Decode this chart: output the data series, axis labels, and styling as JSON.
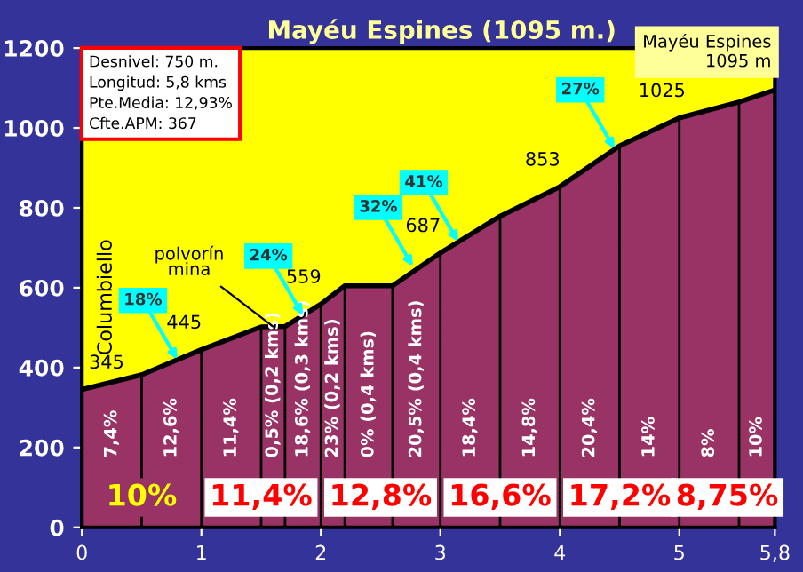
{
  "chart_data": {
    "type": "area",
    "title": "Mayéu Espines (1095 m.)",
    "x": [
      0,
      0.5,
      1,
      1.5,
      1.7,
      2,
      2.2,
      2.6,
      3,
      3.5,
      4,
      4.5,
      5,
      5.5,
      5.8
    ],
    "series": [
      {
        "color": "#993366",
        "values": [
          345,
          382,
          445,
          502,
          503,
          559,
          605,
          605,
          687,
          779,
          853,
          955,
          1025,
          1065,
          1095
        ]
      }
    ],
    "xlim": [
      0,
      5.8
    ],
    "ylim": [
      0,
      1200
    ],
    "xticks": [
      0,
      1,
      2,
      3,
      4,
      5,
      {
        "value": 5.8,
        "label": "5,8"
      }
    ],
    "yticks": [
      0,
      200,
      400,
      600,
      800,
      1000,
      1200
    ],
    "annotations": [
      "Desnivel: 750 m.\nLongitud: 5,8 kms\nPte.Media: 12,93%\nCfte.APM: 367",
      "Mayéu Espines\n1095 m",
      "Columbiello",
      "7,4%",
      "12,6%",
      "11,4%",
      "0,5% (0,2 kms)",
      "18,6% (0,3 kms)",
      "23% (0,2 kms)",
      "0% (0,4 kms)",
      "20,5% (0,4 kms)",
      "18,4%",
      "14,8%",
      "20,4%",
      "14%",
      "8%",
      "10%",
      "10%",
      "11,4%",
      "12,8%",
      "16,6%",
      "17,2%",
      "8,75%",
      {
        "text": "345",
        "x": 0,
        "y": 345
      },
      {
        "text": "445",
        "x": 1,
        "y": 445
      },
      {
        "text": "559",
        "x": 2,
        "y": 559
      },
      {
        "text": "687",
        "x": 3,
        "y": 687
      },
      {
        "text": "853",
        "x": 4,
        "y": 853
      },
      {
        "text": "1025",
        "x": 5,
        "y": 1025
      },
      {
        "text": "polvorín\nmina",
        "x": 1.6,
        "y": 503
      },
      {
        "text": "18%",
        "x": 0.8,
        "y": 420
      },
      {
        "text": "24%",
        "x": 1.85,
        "y": 531
      },
      {
        "text": "32%",
        "x": 2.77,
        "y": 653
      },
      {
        "text": "41%",
        "x": 3.15,
        "y": 715
      },
      {
        "text": "27%",
        "x": 4.46,
        "y": 947
      }
    ]
  }
}
